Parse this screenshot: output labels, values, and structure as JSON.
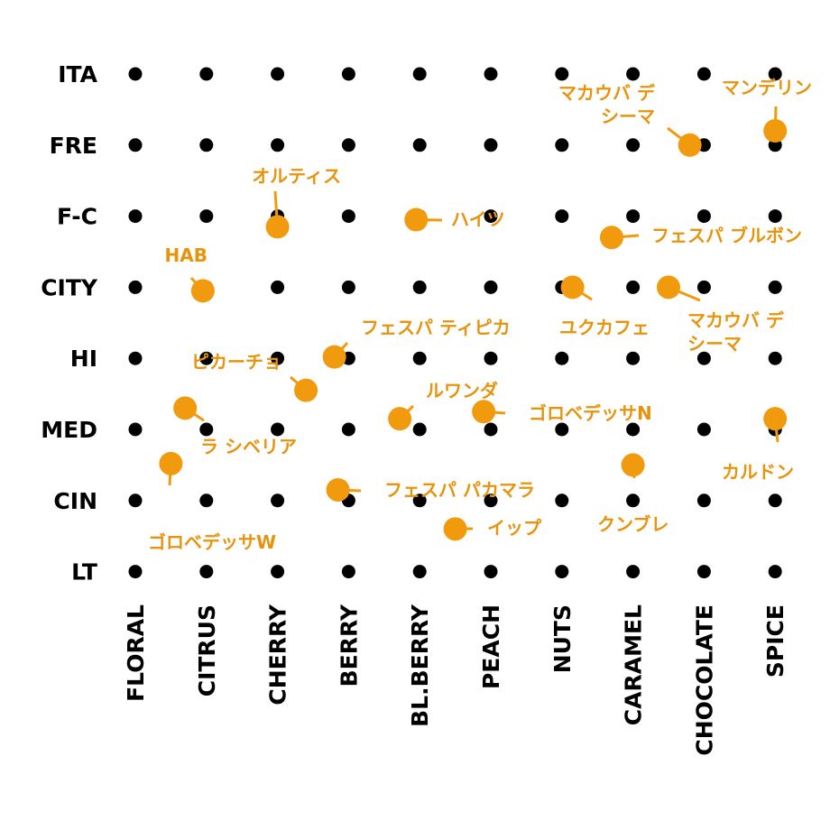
{
  "chart_data": {
    "type": "scatter",
    "colors": {
      "grid_dot": "#000000",
      "point": "#F29A0E",
      "label": "#E8930C"
    },
    "y_categories": [
      "ITA",
      "FRE",
      "F-C",
      "CITY",
      "HI",
      "MED",
      "CIN",
      "LT"
    ],
    "x_categories": [
      "FLORAL",
      "CITRUS",
      "CHERRY",
      "BERRY",
      "BL.BERRY",
      "PEACH",
      "NUTS",
      "CARAMEL",
      "CHOCOLATE",
      "SPICE"
    ],
    "points": [
      {
        "name": "マンデリン",
        "x": 10.0,
        "y": 1.8
      },
      {
        "name": "マカウバ デ シーマ",
        "x": 8.8,
        "y": 2.0
      },
      {
        "name": "オルティス",
        "x": 3.0,
        "y": 3.15
      },
      {
        "name": "ハイツ",
        "x": 4.95,
        "y": 3.05
      },
      {
        "name": "フェスパ ブルボン",
        "x": 7.7,
        "y": 3.3
      },
      {
        "name": "HAB",
        "x": 1.95,
        "y": 4.05
      },
      {
        "name": "ユクカフェ",
        "x": 7.15,
        "y": 4.0
      },
      {
        "name": "マカウバ デ シーマ",
        "x": 8.5,
        "y": 4.0
      },
      {
        "name": "フェスパ ティピカ",
        "x": 3.8,
        "y": 4.98
      },
      {
        "name": "ピカーチョ",
        "x": 3.4,
        "y": 5.45
      },
      {
        "name": "ルワンダ",
        "x": 4.72,
        "y": 5.85
      },
      {
        "name": "ゴロベデッサN",
        "x": 5.9,
        "y": 5.75
      },
      {
        "name": "ラ シベリア",
        "x": 1.7,
        "y": 5.7
      },
      {
        "name": "カルドン",
        "x": 10.0,
        "y": 5.85
      },
      {
        "name": "ゴロベデッサW",
        "x": 1.5,
        "y": 6.48
      },
      {
        "name": "クンブレ",
        "x": 8.0,
        "y": 6.5
      },
      {
        "name": "フェスパ パカマラ",
        "x": 3.85,
        "y": 6.85
      },
      {
        "name": "イップ",
        "x": 5.5,
        "y": 7.4
      }
    ]
  }
}
